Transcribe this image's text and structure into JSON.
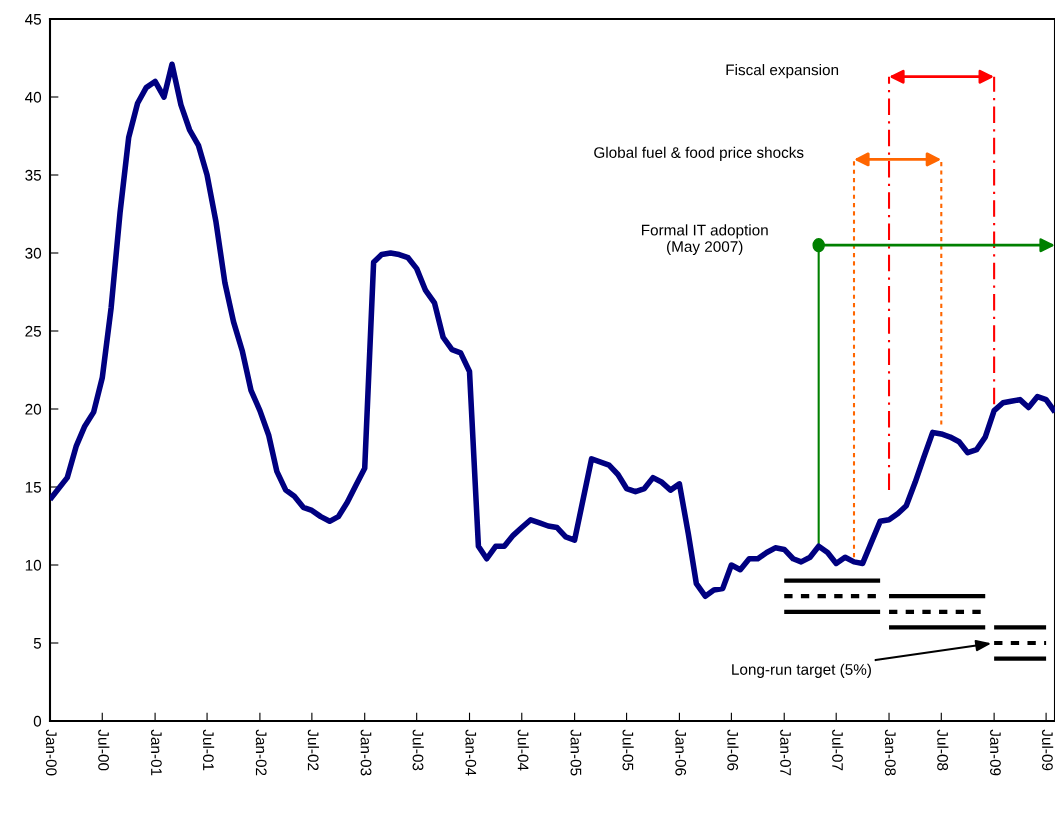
{
  "chart_data": {
    "type": "line",
    "xlim": [
      "2000-01",
      "2009-08"
    ],
    "ylim": [
      0,
      45
    ],
    "yticks": [
      0,
      5,
      10,
      15,
      20,
      25,
      30,
      35,
      40,
      45
    ],
    "xticks": [
      {
        "value": "2000-01",
        "label": "Jan-00"
      },
      {
        "value": "2000-07",
        "label": "Jul-00"
      },
      {
        "value": "2001-01",
        "label": "Jan-01"
      },
      {
        "value": "2001-07",
        "label": "Jul-01"
      },
      {
        "value": "2002-01",
        "label": "Jan-02"
      },
      {
        "value": "2002-07",
        "label": "Jul-02"
      },
      {
        "value": "2003-01",
        "label": "Jan-03"
      },
      {
        "value": "2003-07",
        "label": "Jul-03"
      },
      {
        "value": "2004-01",
        "label": "Jan-04"
      },
      {
        "value": "2004-07",
        "label": "Jul-04"
      },
      {
        "value": "2005-01",
        "label": "Jan-05"
      },
      {
        "value": "2005-07",
        "label": "Jul-05"
      },
      {
        "value": "2006-01",
        "label": "Jan-06"
      },
      {
        "value": "2006-07",
        "label": "Jul-06"
      },
      {
        "value": "2007-01",
        "label": "Jan-07"
      },
      {
        "value": "2007-07",
        "label": "Jul-07"
      },
      {
        "value": "2008-01",
        "label": "Jan-08"
      },
      {
        "value": "2008-07",
        "label": "Jul-08"
      },
      {
        "value": "2009-01",
        "label": "Jan-09"
      },
      {
        "value": "2009-07",
        "label": "Jul-09"
      }
    ],
    "grid": false,
    "series": [
      {
        "color": "#000080",
        "line_style": "solid",
        "x": [
          "2000-01",
          "2000-03",
          "2000-04",
          "2000-05",
          "2000-06",
          "2000-07",
          "2000-08",
          "2000-09",
          "2000-10",
          "2000-11",
          "2000-12",
          "2001-01",
          "2001-02",
          "2001-03",
          "2001-04",
          "2001-05",
          "2001-06",
          "2001-07",
          "2001-08",
          "2001-09",
          "2001-10",
          "2001-11",
          "2001-12",
          "2002-01",
          "2002-02",
          "2002-03",
          "2002-04",
          "2002-05",
          "2002-06",
          "2002-07",
          "2002-08",
          "2002-09",
          "2002-10",
          "2002-11",
          "2002-12",
          "2003-01",
          "2003-02",
          "2003-03",
          "2003-04",
          "2003-05",
          "2003-06",
          "2003-07",
          "2003-08",
          "2003-09",
          "2003-10",
          "2003-11",
          "2003-12",
          "2004-01",
          "2004-02",
          "2004-03",
          "2004-04",
          "2004-05",
          "2004-06",
          "2004-07",
          "2004-08",
          "2004-09",
          "2004-10",
          "2004-11",
          "2004-12",
          "2005-01",
          "2005-03",
          "2005-05",
          "2005-06",
          "2005-07",
          "2005-08",
          "2005-09",
          "2005-10",
          "2005-11",
          "2005-12",
          "2006-01",
          "2006-02",
          "2006-03",
          "2006-04",
          "2006-05",
          "2006-06",
          "2006-07",
          "2006-08",
          "2006-09",
          "2006-10",
          "2006-11",
          "2006-12",
          "2007-01",
          "2007-02",
          "2007-03",
          "2007-04",
          "2007-05",
          "2007-06",
          "2007-07",
          "2007-08",
          "2007-09",
          "2007-10",
          "2007-12",
          "2008-01",
          "2008-02",
          "2008-03",
          "2008-04",
          "2008-05",
          "2008-06",
          "2008-07",
          "2008-08",
          "2008-09",
          "2008-10",
          "2008-11",
          "2008-12",
          "2009-01",
          "2009-02",
          "2009-03",
          "2009-04",
          "2009-05",
          "2009-06",
          "2009-07",
          "2009-08"
        ],
        "values": [
          14.2,
          15.6,
          17.6,
          18.9,
          19.8,
          22.0,
          26.5,
          32.6,
          37.4,
          39.6,
          40.6,
          41.0,
          40.0,
          42.1,
          39.5,
          37.9,
          36.9,
          35.0,
          32.0,
          28.1,
          25.6,
          23.7,
          21.2,
          19.9,
          18.3,
          16.0,
          14.8,
          14.4,
          13.7,
          13.5,
          13.1,
          12.8,
          13.1,
          14.0,
          15.1,
          16.2,
          29.4,
          29.9,
          30.0,
          29.9,
          29.7,
          29.0,
          27.6,
          26.8,
          24.6,
          23.8,
          23.6,
          22.4,
          11.2,
          10.4,
          11.2,
          11.2,
          11.9,
          12.4,
          12.9,
          12.7,
          12.5,
          12.4,
          11.8,
          11.6,
          16.8,
          16.4,
          15.8,
          14.9,
          14.7,
          14.9,
          15.6,
          15.3,
          14.8,
          15.2,
          12.0,
          8.8,
          8.0,
          8.4,
          8.5,
          10.0,
          9.7,
          10.4,
          10.4,
          10.8,
          11.1,
          11.0,
          10.4,
          10.2,
          10.5,
          11.2,
          10.8,
          10.1,
          10.5,
          10.2,
          10.1,
          12.8,
          12.9,
          13.3,
          13.8,
          15.3,
          16.9,
          18.5,
          18.4,
          18.2,
          17.9,
          17.2,
          17.4,
          18.2,
          19.9,
          20.4,
          20.5,
          20.6,
          20.1,
          20.8,
          20.6,
          19.8
        ]
      },
      {
        "type": "line",
        "color": "#000000",
        "line_style": "solid",
        "x": [
          "2007-01",
          "2007-12"
        ],
        "values": [
          9,
          9
        ]
      },
      {
        "type": "line",
        "color": "#000000",
        "line_style": "dashed",
        "x": [
          "2007-01",
          "2007-12"
        ],
        "values": [
          8,
          8
        ]
      },
      {
        "type": "line",
        "color": "#000000",
        "line_style": "solid",
        "x": [
          "2007-01",
          "2007-12"
        ],
        "values": [
          7,
          7
        ]
      },
      {
        "type": "line",
        "color": "#000000",
        "line_style": "solid",
        "x": [
          "2008-01",
          "2008-12"
        ],
        "values": [
          8,
          8
        ]
      },
      {
        "type": "line",
        "color": "#000000",
        "line_style": "dashed",
        "x": [
          "2008-01",
          "2008-12"
        ],
        "values": [
          7,
          7
        ]
      },
      {
        "type": "line",
        "color": "#000000",
        "line_style": "solid",
        "x": [
          "2008-01",
          "2008-12"
        ],
        "values": [
          6,
          6
        ]
      },
      {
        "type": "line",
        "color": "#000000",
        "line_style": "solid",
        "x": [
          "2009-01",
          "2009-07"
        ],
        "values": [
          6,
          6
        ]
      },
      {
        "type": "line",
        "color": "#000000",
        "line_style": "dashed",
        "x": [
          "2009-01",
          "2009-07"
        ],
        "values": [
          5,
          5
        ]
      },
      {
        "type": "line",
        "color": "#000000",
        "line_style": "solid",
        "x": [
          "2009-01",
          "2009-07"
        ],
        "values": [
          4,
          4
        ]
      },
      {
        "type": "line",
        "color": "#ff0000",
        "line_style": "dashdot",
        "x": [
          "2008-01",
          "2008-01"
        ],
        "values": [
          14.8,
          41.3
        ]
      },
      {
        "type": "line",
        "color": "#ff0000",
        "line_style": "dashdot",
        "x": [
          "2009-01",
          "2009-01"
        ],
        "values": [
          20.3,
          41.3
        ]
      },
      {
        "type": "line",
        "color": "#ff6600",
        "line_style": "dashed",
        "x": [
          "2007-09",
          "2007-09"
        ],
        "values": [
          10.5,
          36.0
        ]
      },
      {
        "type": "line",
        "color": "#ff6600",
        "line_style": "dashed",
        "x": [
          "2008-07",
          "2008-07"
        ],
        "values": [
          19.0,
          36.0
        ]
      },
      {
        "type": "line",
        "color": "#008000",
        "line_style": "solid",
        "x": [
          "2007-05",
          "2007-05"
        ],
        "values": [
          11.2,
          30.5
        ]
      }
    ],
    "annotations": [
      "Fiscal expansion",
      "Global fuel & food price shocks",
      "Formal IT adoption\n(May 2007)",
      {
        "text": "Long-run target (5%)",
        "x": "2009-01",
        "y": 5
      }
    ]
  }
}
